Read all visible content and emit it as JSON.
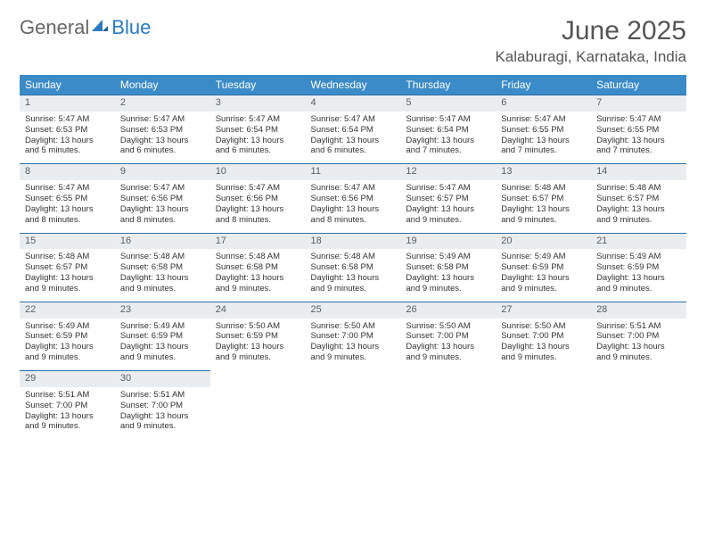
{
  "brand": {
    "part1": "General",
    "part2": "Blue"
  },
  "title": "June 2025",
  "location": "Kalaburagi, Karnataka, India",
  "colors": {
    "header_bg": "#3b8bc9",
    "header_text": "#ffffff",
    "daynum_bg": "#e9edf0",
    "daynum_border": "#2a6fa8",
    "brand_blue": "#2a7abf",
    "text": "#333333",
    "title_color": "#555555"
  },
  "typography": {
    "title_fontsize": 30,
    "location_fontsize": 17,
    "dayheader_fontsize": 12,
    "cell_fontsize": 9.5
  },
  "day_names": [
    "Sunday",
    "Monday",
    "Tuesday",
    "Wednesday",
    "Thursday",
    "Friday",
    "Saturday"
  ],
  "grid": {
    "cols": 7,
    "rows": 5
  },
  "days": [
    {
      "n": 1,
      "sunrise": "5:47 AM",
      "sunset": "6:53 PM",
      "daylight": "13 hours and 5 minutes."
    },
    {
      "n": 2,
      "sunrise": "5:47 AM",
      "sunset": "6:53 PM",
      "daylight": "13 hours and 6 minutes."
    },
    {
      "n": 3,
      "sunrise": "5:47 AM",
      "sunset": "6:54 PM",
      "daylight": "13 hours and 6 minutes."
    },
    {
      "n": 4,
      "sunrise": "5:47 AM",
      "sunset": "6:54 PM",
      "daylight": "13 hours and 6 minutes."
    },
    {
      "n": 5,
      "sunrise": "5:47 AM",
      "sunset": "6:54 PM",
      "daylight": "13 hours and 7 minutes."
    },
    {
      "n": 6,
      "sunrise": "5:47 AM",
      "sunset": "6:55 PM",
      "daylight": "13 hours and 7 minutes."
    },
    {
      "n": 7,
      "sunrise": "5:47 AM",
      "sunset": "6:55 PM",
      "daylight": "13 hours and 7 minutes."
    },
    {
      "n": 8,
      "sunrise": "5:47 AM",
      "sunset": "6:55 PM",
      "daylight": "13 hours and 8 minutes."
    },
    {
      "n": 9,
      "sunrise": "5:47 AM",
      "sunset": "6:56 PM",
      "daylight": "13 hours and 8 minutes."
    },
    {
      "n": 10,
      "sunrise": "5:47 AM",
      "sunset": "6:56 PM",
      "daylight": "13 hours and 8 minutes."
    },
    {
      "n": 11,
      "sunrise": "5:47 AM",
      "sunset": "6:56 PM",
      "daylight": "13 hours and 8 minutes."
    },
    {
      "n": 12,
      "sunrise": "5:47 AM",
      "sunset": "6:57 PM",
      "daylight": "13 hours and 9 minutes."
    },
    {
      "n": 13,
      "sunrise": "5:48 AM",
      "sunset": "6:57 PM",
      "daylight": "13 hours and 9 minutes."
    },
    {
      "n": 14,
      "sunrise": "5:48 AM",
      "sunset": "6:57 PM",
      "daylight": "13 hours and 9 minutes."
    },
    {
      "n": 15,
      "sunrise": "5:48 AM",
      "sunset": "6:57 PM",
      "daylight": "13 hours and 9 minutes."
    },
    {
      "n": 16,
      "sunrise": "5:48 AM",
      "sunset": "6:58 PM",
      "daylight": "13 hours and 9 minutes."
    },
    {
      "n": 17,
      "sunrise": "5:48 AM",
      "sunset": "6:58 PM",
      "daylight": "13 hours and 9 minutes."
    },
    {
      "n": 18,
      "sunrise": "5:48 AM",
      "sunset": "6:58 PM",
      "daylight": "13 hours and 9 minutes."
    },
    {
      "n": 19,
      "sunrise": "5:49 AM",
      "sunset": "6:58 PM",
      "daylight": "13 hours and 9 minutes."
    },
    {
      "n": 20,
      "sunrise": "5:49 AM",
      "sunset": "6:59 PM",
      "daylight": "13 hours and 9 minutes."
    },
    {
      "n": 21,
      "sunrise": "5:49 AM",
      "sunset": "6:59 PM",
      "daylight": "13 hours and 9 minutes."
    },
    {
      "n": 22,
      "sunrise": "5:49 AM",
      "sunset": "6:59 PM",
      "daylight": "13 hours and 9 minutes."
    },
    {
      "n": 23,
      "sunrise": "5:49 AM",
      "sunset": "6:59 PM",
      "daylight": "13 hours and 9 minutes."
    },
    {
      "n": 24,
      "sunrise": "5:50 AM",
      "sunset": "6:59 PM",
      "daylight": "13 hours and 9 minutes."
    },
    {
      "n": 25,
      "sunrise": "5:50 AM",
      "sunset": "7:00 PM",
      "daylight": "13 hours and 9 minutes."
    },
    {
      "n": 26,
      "sunrise": "5:50 AM",
      "sunset": "7:00 PM",
      "daylight": "13 hours and 9 minutes."
    },
    {
      "n": 27,
      "sunrise": "5:50 AM",
      "sunset": "7:00 PM",
      "daylight": "13 hours and 9 minutes."
    },
    {
      "n": 28,
      "sunrise": "5:51 AM",
      "sunset": "7:00 PM",
      "daylight": "13 hours and 9 minutes."
    },
    {
      "n": 29,
      "sunrise": "5:51 AM",
      "sunset": "7:00 PM",
      "daylight": "13 hours and 9 minutes."
    },
    {
      "n": 30,
      "sunrise": "5:51 AM",
      "sunset": "7:00 PM",
      "daylight": "13 hours and 9 minutes."
    }
  ],
  "labels": {
    "sunrise": "Sunrise:",
    "sunset": "Sunset:",
    "daylight": "Daylight:"
  }
}
